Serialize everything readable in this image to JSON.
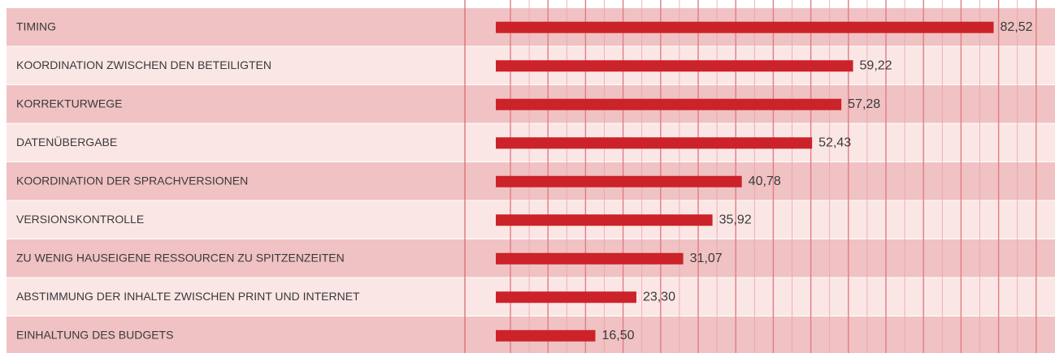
{
  "chart_data": {
    "type": "hbar",
    "categories": [
      "TIMING",
      "KOORDINATION ZWISCHEN DEN BETEILIGTEN",
      "KORREKTURWEGE",
      "DATENÜBERGABE",
      "KOORDINATION DER SPRACHVERSIONEN",
      "VERSIONSKONTROLLE",
      "ZU WENIG HAUSEIGENE RESSOURCEN ZU SPITZENZEITEN",
      "ABSTIMMUNG DER INHALTE ZWISCHEN PRINT UND INTERNET",
      "EINHALTUNG DES BUDGETS"
    ],
    "values": [
      82.52,
      59.22,
      57.28,
      52.43,
      40.78,
      35.92,
      31.07,
      23.3,
      16.5
    ],
    "value_labels": [
      "82,52",
      "59,22",
      "57,28",
      "52,43",
      "40,78",
      "35,92",
      "31,07",
      "23,30",
      "16,50"
    ],
    "color": "#cc2229",
    "xlim": [
      0,
      90
    ]
  }
}
